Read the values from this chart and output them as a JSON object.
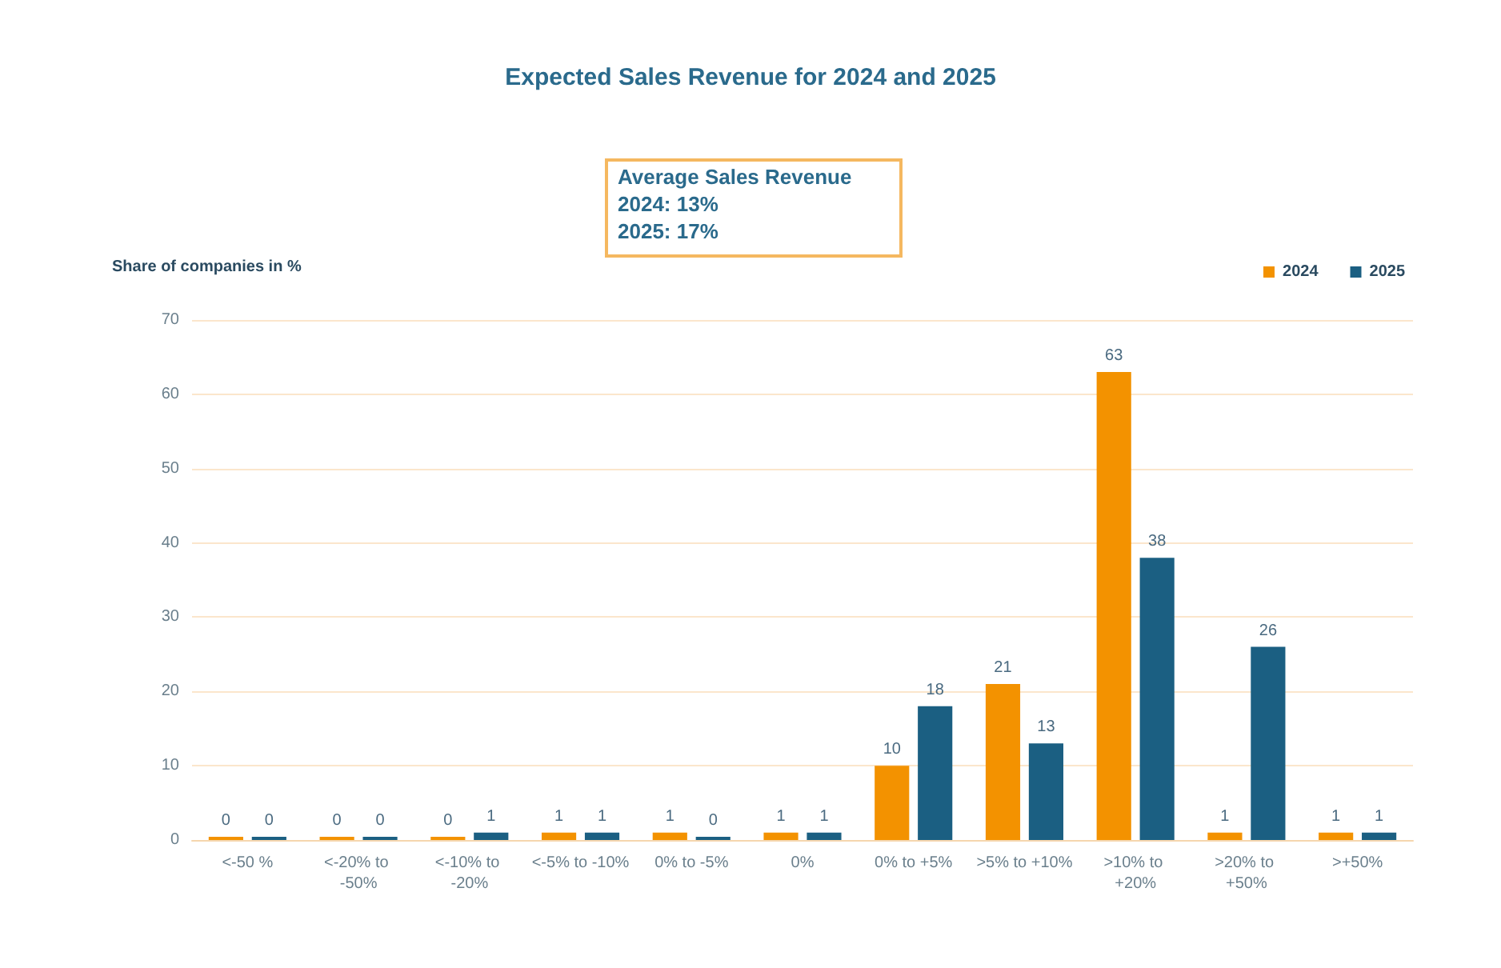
{
  "chart_data": {
    "type": "bar",
    "title": "Expected Sales Revenue for 2024 and 2025",
    "ylabel": "Share of companies in %",
    "categories": [
      "<-50 %",
      "<-20% to -50%",
      "<-10% to -20%",
      "<-5% to -10%",
      "0% to -5%",
      "0%",
      "0% to +5%",
      ">5% to +10%",
      ">10% to +20%",
      ">20% to +50%",
      ">+50%"
    ],
    "series": [
      {
        "name": "2024",
        "color": "#f39200",
        "values": [
          0,
          0,
          0,
          1,
          1,
          1,
          10,
          21,
          63,
          1,
          1
        ]
      },
      {
        "name": "2025",
        "color": "#1b5f82",
        "values": [
          0,
          0,
          1,
          1,
          0,
          1,
          18,
          13,
          38,
          26,
          1
        ]
      }
    ],
    "ylim": [
      0,
      70
    ],
    "yticks": [
      0,
      10,
      20,
      30,
      40,
      50,
      60,
      70
    ],
    "grid": "y",
    "legend": "top right",
    "data_labels": true,
    "annotations": [
      "Average Sales Revenue",
      "2024: 13%",
      "2025: 17%"
    ]
  }
}
